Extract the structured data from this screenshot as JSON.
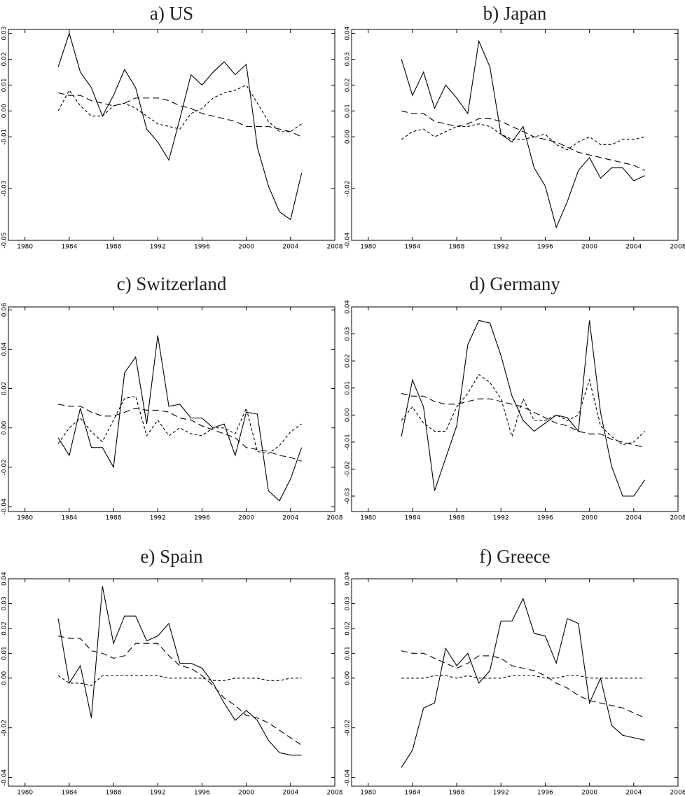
{
  "chart_data": [
    {
      "type": "line",
      "title": "a) US",
      "x": [
        1983,
        1984,
        1985,
        1986,
        1987,
        1988,
        1989,
        1990,
        1991,
        1992,
        1993,
        1994,
        1995,
        1996,
        1997,
        1998,
        1999,
        2000,
        2001,
        2002,
        2003,
        2004,
        2005
      ],
      "xlim": [
        1978.5,
        2008
      ],
      "xticks": [
        1980,
        1984,
        1988,
        1992,
        1996,
        2000,
        2004,
        2008
      ],
      "ylim": [
        -0.05,
        0.0315
      ],
      "yticks": [
        0.03,
        0.02,
        0.01,
        {
          "value": 0,
          "label": "0.00"
        },
        -0.01,
        -0.03,
        -0.05
      ],
      "series": [
        {
          "color": "#000000",
          "style": "solid",
          "values": [
            0.017,
            0.03,
            0.015,
            0.009,
            -0.002,
            0.006,
            0.016,
            0.009,
            -0.007,
            -0.012,
            -0.019,
            -0.003,
            0.014,
            0.01,
            0.015,
            0.019,
            0.014,
            0.018,
            -0.014,
            -0.029,
            -0.039,
            -0.042,
            -0.024
          ]
        },
        {
          "color": "#000000",
          "style": "long-dash",
          "values": [
            0.007,
            0.006,
            0.006,
            0.004,
            0.003,
            0.002,
            0.003,
            0.005,
            0.005,
            0.005,
            0.004,
            0.002,
            0.001,
            -0.001,
            -0.002,
            -0.003,
            -0.004,
            -0.006,
            -0.006,
            -0.006,
            -0.007,
            -0.008,
            -0.01
          ]
        },
        {
          "color": "#000000",
          "style": "short-dash",
          "values": [
            0.0,
            0.008,
            0.002,
            -0.002,
            -0.002,
            0.002,
            0.003,
            0.001,
            -0.002,
            -0.005,
            -0.006,
            -0.007,
            -0.001,
            0.001,
            0.005,
            0.007,
            0.008,
            0.01,
            0.003,
            -0.004,
            -0.008,
            -0.008,
            -0.005
          ]
        }
      ]
    },
    {
      "type": "line",
      "title": "b) Japan",
      "x": [
        1983,
        1984,
        1985,
        1986,
        1987,
        1988,
        1989,
        1990,
        1991,
        1992,
        1993,
        1994,
        1995,
        1996,
        1997,
        1998,
        1999,
        2000,
        2001,
        2002,
        2003,
        2004,
        2005
      ],
      "xlim": [
        1978.5,
        2008
      ],
      "xticks": [
        1980,
        1984,
        1988,
        1992,
        1996,
        2000,
        2004,
        2008
      ],
      "ylim": [
        -0.04,
        0.0415
      ],
      "yticks": [
        0.04,
        0.03,
        0.02,
        0.01,
        {
          "value": 0,
          "label": "0.00"
        },
        -0.02,
        -0.04
      ],
      "series": [
        {
          "color": "#000000",
          "style": "solid",
          "values": [
            0.03,
            0.016,
            0.025,
            0.011,
            0.02,
            0.015,
            0.009,
            0.037,
            0.027,
            0.001,
            -0.002,
            0.004,
            -0.012,
            -0.019,
            -0.035,
            -0.025,
            -0.013,
            -0.008,
            -0.016,
            -0.012,
            -0.012,
            -0.017,
            -0.015
          ]
        },
        {
          "color": "#000000",
          "style": "long-dash",
          "values": [
            0.01,
            0.009,
            0.009,
            0.006,
            0.005,
            0.004,
            0.005,
            0.007,
            0.007,
            0.006,
            0.004,
            0.002,
            0.0,
            -0.001,
            -0.002,
            -0.004,
            -0.006,
            -0.007,
            -0.008,
            -0.009,
            -0.01,
            -0.011,
            -0.013
          ]
        },
        {
          "color": "#000000",
          "style": "short-dash",
          "values": [
            -0.001,
            0.002,
            0.003,
            0.0,
            0.002,
            0.004,
            0.004,
            0.005,
            0.004,
            0.001,
            -0.001,
            -0.001,
            0.0,
            0.001,
            -0.003,
            -0.005,
            -0.002,
            0.0,
            -0.003,
            -0.003,
            -0.001,
            -0.001,
            0.0
          ]
        }
      ]
    },
    {
      "type": "line",
      "title": "c) Switzerland",
      "x": [
        1983,
        1984,
        1985,
        1986,
        1987,
        1988,
        1989,
        1990,
        1991,
        1992,
        1993,
        1994,
        1995,
        1996,
        1997,
        1998,
        1999,
        2000,
        2001,
        2002,
        2003,
        2004,
        2005
      ],
      "xlim": [
        1978.5,
        2008
      ],
      "xticks": [
        1980,
        1984,
        1988,
        1992,
        1996,
        2000,
        2004,
        2008
      ],
      "ylim": [
        -0.0425,
        0.0615
      ],
      "yticks": [
        0.06,
        0.04,
        0.02,
        {
          "value": 0,
          "label": "0.00"
        },
        -0.02,
        -0.04
      ],
      "series": [
        {
          "color": "#000000",
          "style": "solid",
          "values": [
            -0.005,
            -0.014,
            0.01,
            -0.01,
            -0.01,
            -0.02,
            0.028,
            0.036,
            0.002,
            0.047,
            0.011,
            0.012,
            0.005,
            0.005,
            0.0,
            0.002,
            -0.014,
            0.008,
            0.007,
            -0.032,
            -0.037,
            -0.026,
            -0.01
          ]
        },
        {
          "color": "#000000",
          "style": "long-dash",
          "values": [
            0.012,
            0.011,
            0.011,
            0.008,
            0.006,
            0.006,
            0.008,
            0.01,
            0.009,
            0.009,
            0.008,
            0.005,
            0.004,
            0.001,
            -0.001,
            -0.003,
            -0.005,
            -0.01,
            -0.011,
            -0.012,
            -0.014,
            -0.015,
            -0.017
          ]
        },
        {
          "color": "#000000",
          "style": "short-dash",
          "values": [
            -0.008,
            0.0,
            0.005,
            -0.002,
            -0.007,
            0.004,
            0.015,
            0.016,
            -0.004,
            0.004,
            -0.004,
            0.0,
            -0.003,
            -0.004,
            0.0,
            0.0,
            -0.003,
            0.01,
            -0.012,
            -0.013,
            -0.009,
            -0.002,
            0.002
          ]
        }
      ]
    },
    {
      "type": "line",
      "title": "d) Germany",
      "x": [
        1983,
        1984,
        1985,
        1986,
        1987,
        1988,
        1989,
        1990,
        1991,
        1992,
        1993,
        1994,
        1995,
        1996,
        1997,
        1998,
        1999,
        2000,
        2001,
        2002,
        2003,
        2004,
        2005
      ],
      "xlim": [
        1978.5,
        2008
      ],
      "xticks": [
        1980,
        1984,
        1988,
        1992,
        1996,
        2000,
        2004,
        2008
      ],
      "ylim": [
        -0.0357,
        0.04
      ],
      "yticks": [
        0.04,
        0.03,
        0.02,
        0.01,
        {
          "value": 0,
          "label": "0.00"
        },
        -0.01,
        -0.02,
        -0.03
      ],
      "series": [
        {
          "color": "#000000",
          "style": "solid",
          "values": [
            -0.008,
            0.013,
            0.003,
            -0.028,
            -0.016,
            -0.004,
            0.026,
            0.035,
            0.034,
            0.022,
            0.007,
            -0.002,
            -0.006,
            -0.003,
            0.0,
            -0.001,
            -0.006,
            0.035,
            0.001,
            -0.019,
            -0.03,
            -0.03,
            -0.024
          ]
        },
        {
          "color": "#000000",
          "style": "long-dash",
          "values": [
            0.008,
            0.007,
            0.007,
            0.005,
            0.004,
            0.004,
            0.005,
            0.006,
            0.006,
            0.005,
            0.004,
            0.003,
            0.001,
            -0.001,
            -0.003,
            -0.004,
            -0.006,
            -0.007,
            -0.007,
            -0.009,
            -0.01,
            -0.011,
            -0.012
          ]
        },
        {
          "color": "#000000",
          "style": "short-dash",
          "values": [
            -0.002,
            0.003,
            -0.003,
            -0.006,
            -0.006,
            0.003,
            0.008,
            0.015,
            0.012,
            0.006,
            -0.008,
            0.006,
            -0.002,
            -0.002,
            0.0,
            -0.002,
            0.0,
            0.013,
            -0.004,
            -0.008,
            -0.011,
            -0.01,
            -0.006
          ]
        }
      ]
    },
    {
      "type": "line",
      "title": "e) Spain",
      "x": [
        1983,
        1984,
        1985,
        1986,
        1987,
        1988,
        1989,
        1990,
        1991,
        1992,
        1993,
        1994,
        1995,
        1996,
        1997,
        1998,
        1999,
        2000,
        2001,
        2002,
        2003,
        2004,
        2005
      ],
      "xlim": [
        1978.5,
        2008
      ],
      "xticks": [
        1980,
        1984,
        1988,
        1992,
        1996,
        2000,
        2004,
        2008
      ],
      "ylim": [
        -0.0435,
        0.04
      ],
      "yticks": [
        0.04,
        0.03,
        0.02,
        0.01,
        {
          "value": 0,
          "label": "0.00"
        },
        -0.02,
        -0.04
      ],
      "series": [
        {
          "color": "#000000",
          "style": "solid",
          "values": [
            0.024,
            -0.002,
            0.005,
            -0.016,
            0.037,
            0.014,
            0.025,
            0.025,
            0.015,
            0.017,
            0.022,
            0.006,
            0.006,
            0.004,
            -0.002,
            -0.01,
            -0.017,
            -0.013,
            -0.017,
            -0.025,
            -0.03,
            -0.031,
            -0.031
          ]
        },
        {
          "color": "#000000",
          "style": "long-dash",
          "values": [
            0.017,
            0.016,
            0.016,
            0.011,
            0.01,
            0.008,
            0.009,
            0.014,
            0.014,
            0.014,
            0.009,
            0.005,
            0.004,
            0.001,
            -0.003,
            -0.008,
            -0.011,
            -0.015,
            -0.016,
            -0.018,
            -0.021,
            -0.024,
            -0.027
          ]
        },
        {
          "color": "#000000",
          "style": "short-dash",
          "values": [
            0.001,
            -0.002,
            -0.002,
            -0.003,
            0.001,
            0.001,
            0.001,
            0.001,
            0.001,
            0.001,
            0.0,
            0.0,
            0.0,
            0.0,
            -0.001,
            -0.001,
            0.0,
            0.0,
            0.0,
            -0.001,
            -0.001,
            0.0,
            0.0
          ]
        }
      ]
    },
    {
      "type": "line",
      "title": "f) Greece",
      "x": [
        1983,
        1984,
        1985,
        1986,
        1987,
        1988,
        1989,
        1990,
        1991,
        1992,
        1993,
        1994,
        1995,
        1996,
        1997,
        1998,
        1999,
        2000,
        2001,
        2002,
        2003,
        2004,
        2005
      ],
      "xlim": [
        1978.5,
        2008
      ],
      "xticks": [
        1980,
        1984,
        1988,
        1992,
        1996,
        2000,
        2004,
        2008
      ],
      "ylim": [
        -0.0435,
        0.04
      ],
      "yticks": [
        0.04,
        0.03,
        0.02,
        0.01,
        {
          "value": 0,
          "label": "0.00"
        },
        -0.02,
        -0.04
      ],
      "series": [
        {
          "color": "#000000",
          "style": "solid",
          "values": [
            -0.036,
            -0.029,
            -0.012,
            -0.01,
            0.012,
            0.005,
            0.01,
            -0.002,
            0.003,
            0.023,
            0.023,
            0.032,
            0.018,
            0.017,
            0.006,
            0.024,
            0.022,
            -0.01,
            0.0,
            -0.019,
            -0.023,
            -0.024,
            -0.025
          ]
        },
        {
          "color": "#000000",
          "style": "long-dash",
          "values": [
            0.011,
            0.01,
            0.01,
            0.008,
            0.006,
            0.004,
            0.006,
            0.009,
            0.009,
            0.008,
            0.005,
            0.004,
            0.003,
            0.001,
            -0.002,
            -0.004,
            -0.007,
            -0.009,
            -0.01,
            -0.011,
            -0.012,
            -0.014,
            -0.016
          ]
        },
        {
          "color": "#000000",
          "style": "short-dash",
          "values": [
            0.0,
            0.0,
            0.0,
            0.001,
            0.001,
            0.0,
            0.001,
            0.0,
            0.0,
            0.0,
            0.001,
            0.001,
            0.001,
            0.0,
            0.0,
            0.001,
            0.001,
            0.0,
            0.0,
            0.0,
            0.0,
            0.0,
            0.0
          ]
        }
      ]
    }
  ]
}
